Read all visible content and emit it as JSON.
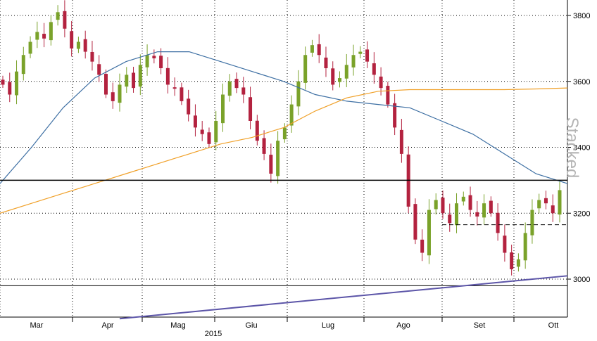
{
  "chart_data": {
    "type": "candlestick",
    "x_labels": [
      "Mar",
      "Apr",
      "Mag",
      "Giu",
      "Lug",
      "Ago",
      "Set",
      "Ott"
    ],
    "year_label": "2015",
    "side_label": "Stacked",
    "y_ticks": [
      3000,
      3200,
      3400,
      3600,
      3800
    ],
    "ylim": [
      2870,
      3850
    ],
    "grid": true,
    "colors": {
      "up_candle": "#7aa22a",
      "down_candle": "#b3223f",
      "ma_short": "#3d6fa3",
      "ma_long": "#f0a028",
      "trendline": "#5c55a8",
      "resistance": "#000000",
      "grid": "#000000"
    },
    "closes": [
      3590,
      3560,
      3630,
      3680,
      3720,
      3750,
      3730,
      3780,
      3810,
      3760,
      3700,
      3720,
      3690,
      3660,
      3620,
      3560,
      3540,
      3590,
      3620,
      3580,
      3650,
      3680,
      3670,
      3640,
      3590,
      3580,
      3540,
      3500,
      3460,
      3440,
      3410,
      3480,
      3560,
      3600,
      3580,
      3560,
      3480,
      3420,
      3380,
      3320,
      3420,
      3460,
      3530,
      3600,
      3680,
      3710,
      3680,
      3640,
      3590,
      3610,
      3650,
      3680,
      3690,
      3660,
      3620,
      3580,
      3530,
      3460,
      3380,
      3220,
      3120,
      3080,
      3210,
      3240,
      3200,
      3170,
      3230,
      3250,
      3210,
      3190,
      3230,
      3200,
      3140,
      3080,
      3030,
      3060,
      3140,
      3210,
      3240,
      3230,
      3200,
      3270
    ],
    "ma_short": [
      3290,
      3400,
      3520,
      3610,
      3660,
      3690,
      3690,
      3660,
      3630,
      3600,
      3560,
      3540,
      3530,
      3520,
      3480,
      3440,
      3380,
      3320,
      3290
    ],
    "ma_long": [
      3200,
      3230,
      3260,
      3290,
      3320,
      3350,
      3380,
      3410,
      3430,
      3460,
      3510,
      3550,
      3570,
      3575,
      3575,
      3575,
      3575,
      3577,
      3580
    ],
    "resistance_level": 3300,
    "support_level": 2980,
    "dashed_level": 3165,
    "trendline": [
      2880,
      3010
    ]
  }
}
